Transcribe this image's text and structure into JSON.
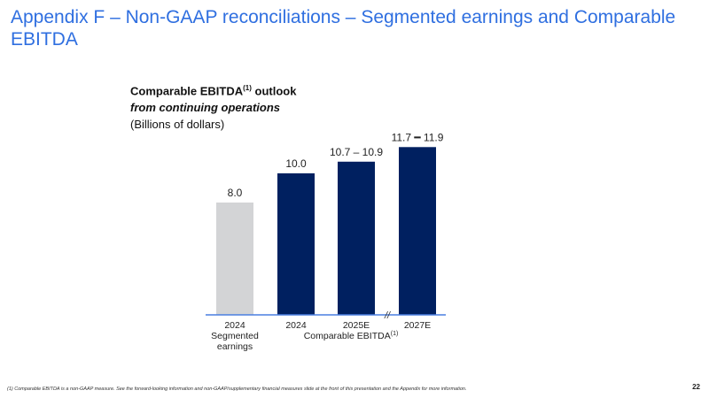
{
  "slide": {
    "title": "Appendix F – Non-GAAP reconciliations – Segmented earnings and Comparable EBITDA",
    "page_number": "22",
    "footnote": "(1) Comparable EBITDA is a non-GAAP measure. See the forward-looking information and non-GAAP/supplementary financial measures slide at the front of this presentation and the Appendix for more information."
  },
  "chart_heading": {
    "line1": "Comparable EBITDA",
    "line1_sup": "(1)",
    "line1_suffix": " outlook",
    "line2": "from continuing operations",
    "line3": "(Billions of dollars)"
  },
  "colors": {
    "title": "#2f6fe0",
    "segmented_bar": "#d3d4d6",
    "ebitda_bar": "#002060",
    "baseline": "#4a7fe0"
  },
  "chart_data": {
    "type": "bar",
    "categories": [
      "2024 Segmented earnings",
      "2024",
      "2025E",
      "2027E"
    ],
    "category_label_lines": [
      [
        "2024",
        "Segmented",
        "earnings"
      ],
      [
        "2024"
      ],
      [
        "2025E"
      ],
      [
        "2027E"
      ]
    ],
    "values": [
      8.0,
      10.0,
      10.8,
      11.8
    ],
    "ranges": [
      null,
      null,
      [
        10.7,
        10.9
      ],
      [
        11.7,
        11.9
      ]
    ],
    "data_labels": [
      "8.0",
      "10.0",
      "10.7 – 10.9",
      "11.7 ━ 11.9"
    ],
    "bar_colors": [
      "#d3d4d6",
      "#002060",
      "#002060",
      "#002060"
    ],
    "group_label": "Comparable EBITDA",
    "group_label_sup": "(1)",
    "axis_break": "//",
    "title": "",
    "xlabel": "",
    "ylabel": "",
    "yaxis_visible": false,
    "grid": false
  }
}
